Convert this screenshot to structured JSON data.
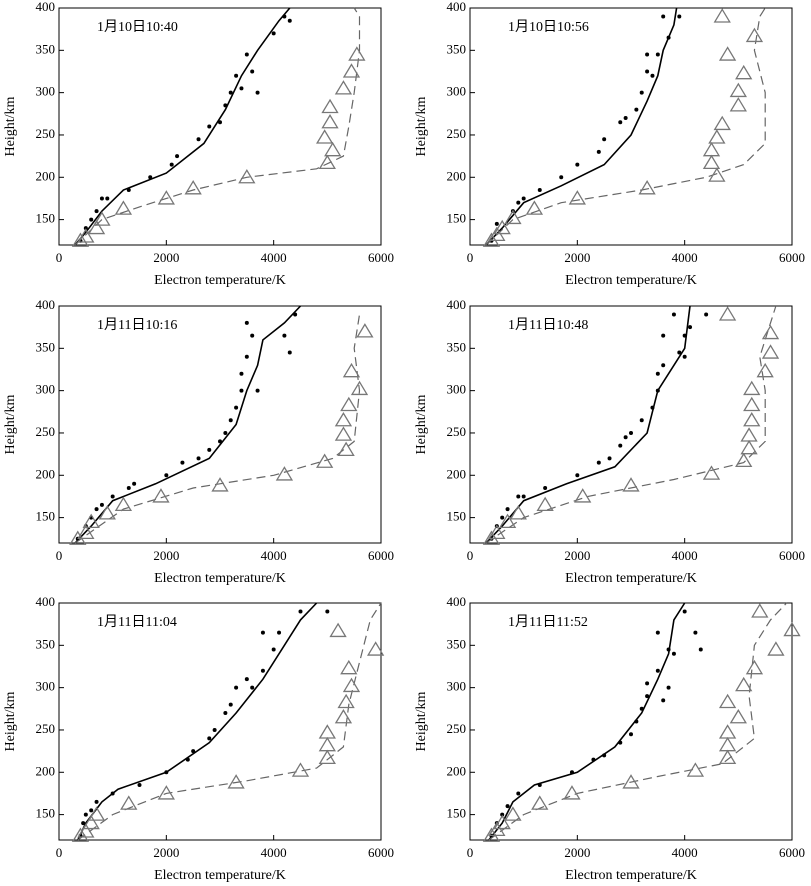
{
  "chart_data": [
    {
      "type": "line",
      "title": "1月10日10:40",
      "xlabel": "Electron temperature/K",
      "ylabel": "Height/km",
      "xlim": [
        0,
        6000
      ],
      "ylim": [
        120,
        400
      ],
      "xticks": [
        0,
        2000,
        4000,
        6000
      ],
      "yticks": [
        150,
        200,
        250,
        300,
        350,
        400
      ],
      "series": [
        {
          "type": "scatter",
          "marker": "dot",
          "color": "#000000",
          "x": [
            400,
            500,
            600,
            700,
            800,
            900,
            1300,
            1700,
            2100,
            2200,
            2600,
            2800,
            3000,
            3100,
            3200,
            3300,
            3400,
            3500,
            3600,
            3700,
            4000,
            4200,
            4300
          ],
          "y": [
            125,
            140,
            150,
            160,
            175,
            175,
            185,
            200,
            215,
            225,
            245,
            260,
            265,
            285,
            300,
            320,
            305,
            345,
            325,
            300,
            370,
            390,
            385
          ]
        },
        {
          "type": "line",
          "dashed": false,
          "color": "#000000",
          "x": [
            300,
            500,
            800,
            1200,
            2000,
            2700,
            3100,
            3400,
            3700,
            4100,
            4300
          ],
          "y": [
            120,
            135,
            160,
            185,
            205,
            240,
            280,
            320,
            350,
            385,
            400
          ]
        },
        {
          "type": "line",
          "dashed": true,
          "color": "#666666",
          "x": [
            300,
            800,
            1500,
            2500,
            3500,
            4800,
            5300,
            5400,
            5500,
            5600,
            5600,
            5500
          ],
          "y": [
            120,
            150,
            165,
            185,
            200,
            210,
            225,
            260,
            300,
            350,
            390,
            400
          ]
        },
        {
          "type": "scatter",
          "marker": "triangle",
          "color": "#777777",
          "x": [
            400,
            500,
            700,
            800,
            1200,
            2000,
            2500,
            3500,
            5000,
            5100,
            4950,
            5050,
            5050,
            5300,
            5450,
            5550
          ],
          "y": [
            125,
            130,
            140,
            150,
            163,
            175,
            187,
            200,
            217,
            232,
            247,
            265,
            283,
            305,
            325,
            345
          ]
        }
      ]
    },
    {
      "type": "line",
      "title": "1月10日10:56",
      "xlabel": "Electron temperature/K",
      "ylabel": "Height/km",
      "xlim": [
        0,
        6000
      ],
      "ylim": [
        120,
        400
      ],
      "xticks": [
        0,
        2000,
        4000,
        6000
      ],
      "yticks": [
        150,
        200,
        250,
        300,
        350,
        400
      ],
      "series": [
        {
          "type": "scatter",
          "marker": "dot",
          "color": "#000000",
          "x": [
            400,
            500,
            800,
            900,
            1000,
            1300,
            1700,
            2000,
            2400,
            2500,
            2800,
            2900,
            3100,
            3200,
            3300,
            3400,
            3300,
            3500,
            3700,
            3900,
            3600
          ],
          "y": [
            125,
            145,
            160,
            170,
            175,
            185,
            200,
            215,
            230,
            245,
            265,
            270,
            280,
            300,
            325,
            320,
            345,
            345,
            365,
            390,
            390
          ]
        },
        {
          "type": "line",
          "dashed": false,
          "color": "#000000",
          "x": [
            300,
            600,
            1000,
            1700,
            2500,
            3000,
            3300,
            3500,
            3600,
            3800,
            3850
          ],
          "y": [
            120,
            140,
            170,
            190,
            215,
            250,
            290,
            320,
            350,
            380,
            400
          ]
        },
        {
          "type": "line",
          "dashed": true,
          "color": "#666666",
          "x": [
            300,
            800,
            1700,
            3200,
            4400,
            5100,
            5500,
            5500,
            5300,
            5400,
            5500
          ],
          "y": [
            120,
            150,
            170,
            185,
            200,
            215,
            240,
            300,
            350,
            390,
            400
          ]
        },
        {
          "type": "scatter",
          "marker": "triangle",
          "color": "#777777",
          "x": [
            400,
            500,
            600,
            800,
            1200,
            2000,
            3300,
            4600,
            4500,
            4500,
            4600,
            4700,
            5000,
            5000,
            5100,
            4800,
            5300,
            4700
          ],
          "y": [
            125,
            132,
            140,
            152,
            163,
            175,
            187,
            202,
            217,
            232,
            247,
            263,
            285,
            302,
            323,
            345,
            367,
            390
          ]
        }
      ]
    },
    {
      "type": "line",
      "title": "1月11日10:16",
      "xlabel": "Electron temperature/K",
      "ylabel": "Height/km",
      "xlim": [
        0,
        6000
      ],
      "ylim": [
        120,
        400
      ],
      "xticks": [
        0,
        2000,
        4000,
        6000
      ],
      "yticks": [
        150,
        200,
        250,
        300,
        350,
        400
      ],
      "series": [
        {
          "type": "scatter",
          "marker": "dot",
          "color": "#000000",
          "x": [
            350,
            500,
            600,
            700,
            800,
            1000,
            1300,
            1400,
            2000,
            2300,
            2600,
            2800,
            3000,
            3100,
            3200,
            3300,
            3400,
            3400,
            3500,
            3700,
            3600,
            4200,
            4300,
            4400,
            3500
          ],
          "y": [
            125,
            140,
            150,
            160,
            165,
            175,
            185,
            190,
            200,
            215,
            220,
            230,
            240,
            250,
            265,
            280,
            300,
            320,
            340,
            300,
            365,
            365,
            345,
            390,
            380
          ]
        },
        {
          "type": "line",
          "dashed": false,
          "color": "#000000",
          "x": [
            300,
            600,
            1000,
            1800,
            2800,
            3300,
            3500,
            3700,
            3800,
            4200,
            4500
          ],
          "y": [
            120,
            140,
            170,
            190,
            220,
            260,
            300,
            330,
            360,
            380,
            400
          ]
        },
        {
          "type": "line",
          "dashed": true,
          "color": "#666666",
          "x": [
            300,
            1200,
            2500,
            4000,
            5100,
            5500,
            5600,
            5500,
            5600
          ],
          "y": [
            120,
            160,
            185,
            200,
            220,
            240,
            300,
            350,
            390
          ]
        },
        {
          "type": "scatter",
          "marker": "triangle",
          "color": "#777777",
          "x": [
            350,
            500,
            600,
            900,
            1200,
            1900,
            3000,
            4200,
            4950,
            5350,
            5300,
            5300,
            5400,
            5600,
            5450,
            5700
          ],
          "y": [
            125,
            132,
            145,
            155,
            165,
            175,
            188,
            201,
            216,
            230,
            248,
            265,
            283,
            302,
            323,
            370
          ]
        }
      ]
    },
    {
      "type": "line",
      "title": "1月11日10:48",
      "xlabel": "Electron temperature/K",
      "ylabel": "Height/km",
      "xlim": [
        0,
        6000
      ],
      "ylim": [
        120,
        400
      ],
      "xticks": [
        0,
        2000,
        4000,
        6000
      ],
      "yticks": [
        150,
        200,
        250,
        300,
        350,
        400
      ],
      "series": [
        {
          "type": "scatter",
          "marker": "dot",
          "color": "#000000",
          "x": [
            400,
            500,
            600,
            700,
            900,
            1000,
            1400,
            2000,
            2400,
            2600,
            2800,
            2900,
            3000,
            3200,
            3400,
            3500,
            3500,
            3600,
            3900,
            4000,
            3600,
            4000,
            3800,
            4100,
            4400
          ],
          "y": [
            125,
            140,
            150,
            160,
            175,
            175,
            185,
            200,
            215,
            220,
            235,
            245,
            250,
            265,
            280,
            300,
            320,
            330,
            345,
            340,
            365,
            365,
            390,
            375,
            390
          ]
        },
        {
          "type": "line",
          "dashed": false,
          "color": "#000000",
          "x": [
            300,
            600,
            1000,
            1800,
            2700,
            3300,
            3500,
            3800,
            4000,
            4100
          ],
          "y": [
            120,
            140,
            170,
            190,
            210,
            250,
            300,
            330,
            350,
            400
          ]
        },
        {
          "type": "line",
          "dashed": true,
          "color": "#666666",
          "x": [
            300,
            1000,
            2200,
            3800,
            5100,
            5500,
            5500,
            5400,
            5600,
            5700
          ],
          "y": [
            120,
            150,
            175,
            195,
            215,
            240,
            300,
            340,
            380,
            400
          ]
        },
        {
          "type": "scatter",
          "marker": "triangle",
          "color": "#777777",
          "x": [
            400,
            500,
            700,
            900,
            1400,
            2100,
            3000,
            4500,
            5100,
            5200,
            5200,
            5250,
            5250,
            5250,
            5500,
            5600,
            5600,
            4800
          ],
          "y": [
            125,
            132,
            145,
            155,
            165,
            175,
            188,
            202,
            217,
            232,
            247,
            265,
            283,
            302,
            323,
            345,
            368,
            390
          ]
        }
      ]
    },
    {
      "type": "line",
      "title": "1月11日11:04",
      "xlabel": "Electron temperature/K",
      "ylabel": "Height/km",
      "xlim": [
        0,
        6000
      ],
      "ylim": [
        120,
        400
      ],
      "xticks": [
        0,
        2000,
        4000,
        6000
      ],
      "yticks": [
        150,
        200,
        250,
        300,
        350,
        400
      ],
      "series": [
        {
          "type": "scatter",
          "marker": "dot",
          "color": "#000000",
          "x": [
            400,
            450,
            500,
            600,
            700,
            1000,
            1500,
            2000,
            2400,
            2500,
            2800,
            2900,
            3100,
            3200,
            3300,
            3500,
            3600,
            3800,
            4000,
            4100,
            3800,
            4500,
            5000
          ],
          "y": [
            125,
            140,
            150,
            155,
            165,
            175,
            185,
            200,
            215,
            225,
            240,
            250,
            270,
            280,
            300,
            310,
            300,
            320,
            345,
            365,
            365,
            390,
            390
          ]
        },
        {
          "type": "line",
          "dashed": false,
          "color": "#000000",
          "x": [
            350,
            500,
            800,
            1100,
            2000,
            2800,
            3300,
            3800,
            4200,
            4500,
            4800
          ],
          "y": [
            120,
            140,
            165,
            180,
            200,
            235,
            270,
            310,
            350,
            380,
            400
          ]
        },
        {
          "type": "line",
          "dashed": true,
          "color": "#666666",
          "x": [
            350,
            1000,
            2000,
            3500,
            4800,
            5300,
            5400,
            5600,
            5800,
            6000
          ],
          "y": [
            120,
            150,
            175,
            190,
            205,
            230,
            280,
            330,
            380,
            400
          ]
        },
        {
          "type": "scatter",
          "marker": "triangle",
          "color": "#777777",
          "x": [
            400,
            500,
            600,
            700,
            1300,
            2000,
            3300,
            4500,
            5000,
            5000,
            5000,
            5300,
            5350,
            5450,
            5400,
            5200,
            5900
          ],
          "y": [
            125,
            130,
            140,
            150,
            163,
            175,
            188,
            202,
            217,
            232,
            247,
            265,
            283,
            302,
            323,
            367,
            345
          ]
        }
      ]
    },
    {
      "type": "line",
      "title": "1月11日11:52",
      "xlabel": "Electron temperature/K",
      "ylabel": "Height/km",
      "xlim": [
        0,
        6000
      ],
      "ylim": [
        120,
        400
      ],
      "xticks": [
        0,
        2000,
        4000,
        6000
      ],
      "yticks": [
        150,
        200,
        250,
        300,
        350,
        400
      ],
      "series": [
        {
          "type": "scatter",
          "marker": "dot",
          "color": "#000000",
          "x": [
            400,
            500,
            600,
            700,
            900,
            1300,
            1900,
            2300,
            2500,
            2800,
            3000,
            3100,
            3200,
            3300,
            3300,
            3500,
            3700,
            3800,
            3700,
            3600,
            3500,
            4000,
            4200,
            4300
          ],
          "y": [
            125,
            140,
            150,
            160,
            175,
            185,
            200,
            215,
            220,
            235,
            245,
            260,
            275,
            290,
            305,
            320,
            300,
            340,
            345,
            285,
            365,
            390,
            365,
            345
          ]
        },
        {
          "type": "line",
          "dashed": false,
          "color": "#000000",
          "x": [
            350,
            600,
            800,
            1200,
            2000,
            2700,
            3200,
            3500,
            3700,
            3800,
            4000
          ],
          "y": [
            120,
            140,
            165,
            185,
            200,
            230,
            270,
            310,
            340,
            380,
            400
          ]
        },
        {
          "type": "line",
          "dashed": true,
          "color": "#666666",
          "x": [
            350,
            1000,
            2000,
            3500,
            4700,
            5300,
            5200,
            5300,
            5600,
            5900
          ],
          "y": [
            120,
            150,
            175,
            195,
            210,
            240,
            290,
            350,
            380,
            400
          ]
        },
        {
          "type": "scatter",
          "marker": "triangle",
          "color": "#777777",
          "x": [
            400,
            500,
            600,
            800,
            1300,
            1900,
            3000,
            4200,
            4800,
            4800,
            4800,
            5000,
            4800,
            5100,
            5300,
            5700,
            6000,
            5400
          ],
          "y": [
            125,
            132,
            140,
            150,
            163,
            175,
            188,
            202,
            217,
            232,
            247,
            265,
            283,
            303,
            323,
            345,
            368,
            390
          ]
        }
      ]
    }
  ]
}
